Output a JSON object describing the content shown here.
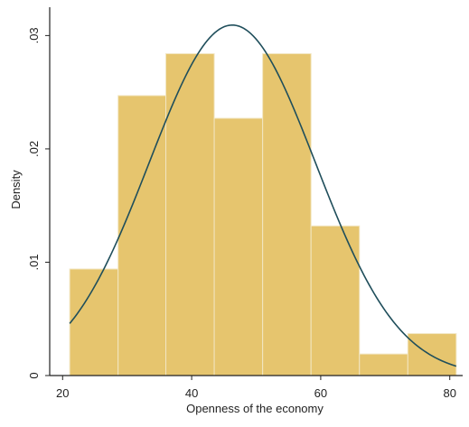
{
  "chart_data": {
    "type": "bar",
    "subtype": "histogram with normal density curve",
    "title": "",
    "xlabel": "Openness of the economy",
    "ylabel": "Density",
    "xlim": [
      18,
      82
    ],
    "ylim": [
      0,
      0.0325
    ],
    "x_ticks": [
      {
        "value": 20,
        "label": "20"
      },
      {
        "value": 40,
        "label": "40"
      },
      {
        "value": 60,
        "label": "60"
      },
      {
        "value": 80,
        "label": "80"
      }
    ],
    "y_ticks": [
      {
        "value": 0,
        "label": "0"
      },
      {
        "value": 0.01,
        "label": ".01"
      },
      {
        "value": 0.02,
        "label": ".02"
      },
      {
        "value": 0.03,
        "label": ".03"
      }
    ],
    "bins": [
      {
        "x0": 21.1,
        "x1": 28.6,
        "density": 0.0094
      },
      {
        "x0": 28.6,
        "x1": 36.0,
        "density": 0.0247
      },
      {
        "x0": 36.0,
        "x1": 43.5,
        "density": 0.0284
      },
      {
        "x0": 43.5,
        "x1": 51.0,
        "density": 0.0227
      },
      {
        "x0": 51.0,
        "x1": 58.5,
        "density": 0.0284
      },
      {
        "x0": 58.5,
        "x1": 66.0,
        "density": 0.0132
      },
      {
        "x0": 66.0,
        "x1": 73.5,
        "density": 0.0019
      },
      {
        "x0": 73.5,
        "x1": 81.0,
        "density": 0.0037
      }
    ],
    "normal_curve": {
      "mean": 46.3,
      "sd": 12.9,
      "x_start": 21.1,
      "x_end": 81.0
    },
    "grid": false,
    "legend": "none",
    "colors": {
      "bar_fill": "#E6C56E",
      "bar_edge": "#F2E6C2",
      "curve": "#1F4E5B",
      "axis": "#222222"
    }
  }
}
